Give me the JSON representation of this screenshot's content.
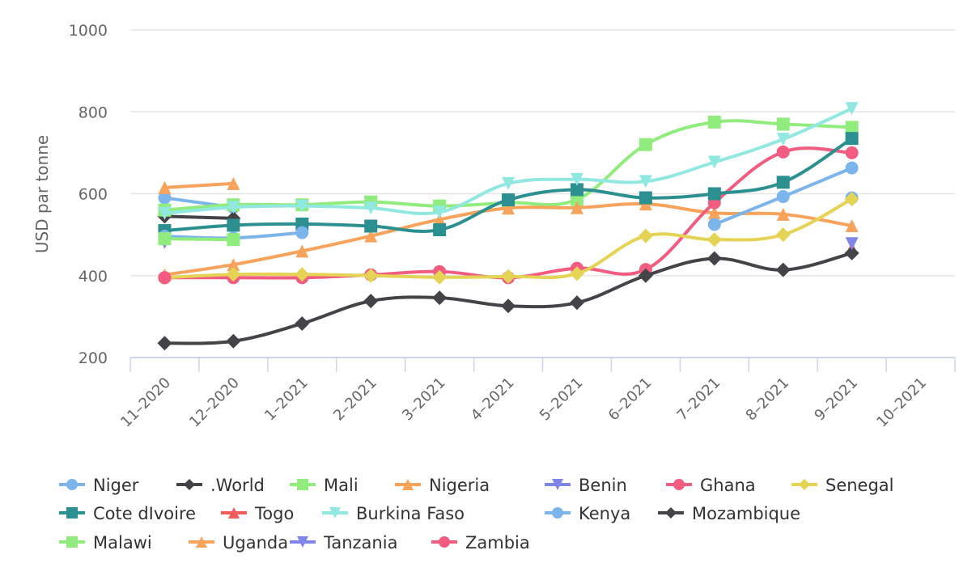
{
  "chart_data": {
    "type": "line",
    "title": "",
    "xlabel": "",
    "ylabel": "USD par tonne",
    "ylim": [
      200,
      1000
    ],
    "yticks": [
      "200",
      "400",
      "600",
      "800",
      "1000"
    ],
    "categories": [
      "11-2020",
      "12-2020",
      "1-2021",
      "2-2021",
      "3-2021",
      "4-2021",
      "5-2021",
      "6-2021",
      "7-2021",
      "8-2021",
      "9-2021",
      "10-2021"
    ],
    "grid": true,
    "legend_position": "bottom",
    "series": [
      {
        "name": "Niger",
        "color": "#7cb5ec",
        "marker": "circle",
        "values": [
          590,
          567,
          null,
          null,
          null,
          null,
          null,
          null,
          null,
          null,
          590,
          null
        ]
      },
      {
        "name": ".World",
        "color": "#434348",
        "marker": "diamond",
        "values": [
          545,
          540,
          null,
          null,
          null,
          null,
          null,
          null,
          null,
          null,
          null,
          null
        ]
      },
      {
        "name": "Mali",
        "color": "#90ed7d",
        "marker": "square",
        "values": [
          560,
          573,
          573,
          580,
          570,
          578,
          586,
          720,
          775,
          770,
          762,
          null
        ]
      },
      {
        "name": "Nigeria",
        "color": "#f7a35c",
        "marker": "triangle",
        "values": [
          402,
          427,
          460,
          497,
          537,
          565,
          566,
          575,
          553,
          550,
          522,
          null
        ]
      },
      {
        "name": "Benin",
        "color": "#8085e9",
        "marker": "triangle-down",
        "values": [
          481,
          null,
          null,
          null,
          null,
          null,
          null,
          null,
          null,
          null,
          null,
          null
        ]
      },
      {
        "name": "Ghana",
        "color": "#f15c80",
        "marker": "circle",
        "values": [
          395,
          395,
          395,
          402,
          410,
          395,
          418,
          415,
          578,
          702,
          700,
          null
        ]
      },
      {
        "name": "Senegal",
        "color": "#e4d354",
        "marker": "diamond",
        "values": [
          395,
          403,
          403,
          400,
          396,
          398,
          405,
          497,
          488,
          500,
          587,
          null
        ]
      },
      {
        "name": "Cote dIvoire",
        "color": "#2b908f",
        "marker": "square",
        "values": [
          510,
          523,
          526,
          521,
          512,
          585,
          610,
          590,
          600,
          628,
          735,
          null
        ]
      },
      {
        "name": "Togo",
        "color": "#f45b5b",
        "marker": "triangle",
        "values": [
          null,
          null,
          null,
          null,
          null,
          null,
          null,
          null,
          null,
          null,
          467,
          null
        ]
      },
      {
        "name": "Burkina Faso",
        "color": "#91e8e1",
        "marker": "triangle-down",
        "values": [
          552,
          567,
          570,
          565,
          555,
          625,
          635,
          630,
          677,
          733,
          808,
          null
        ]
      },
      {
        "name": "Kenya",
        "color": "#7cb5ec",
        "marker": "circle",
        "values": [
          496,
          492,
          505,
          null,
          null,
          null,
          null,
          null,
          525,
          593,
          663,
          null
        ]
      },
      {
        "name": "Mozambique",
        "color": "#434348",
        "marker": "diamond",
        "values": [
          235,
          240,
          283,
          338,
          346,
          326,
          334,
          400,
          442,
          414,
          455,
          null
        ]
      },
      {
        "name": "Malawi",
        "color": "#90ed7d",
        "marker": "square",
        "values": [
          490,
          488,
          null,
          null,
          null,
          null,
          null,
          null,
          null,
          null,
          null,
          null
        ]
      },
      {
        "name": "Uganda",
        "color": "#f7a35c",
        "marker": "triangle",
        "values": [
          615,
          625,
          null,
          null,
          null,
          null,
          null,
          null,
          null,
          null,
          null,
          null
        ]
      },
      {
        "name": "Tanzania",
        "color": "#8085e9",
        "marker": "triangle-down",
        "values": [
          null,
          null,
          null,
          null,
          null,
          null,
          null,
          null,
          null,
          null,
          478,
          null
        ]
      },
      {
        "name": "Zambia",
        "color": "#f15c80",
        "marker": "circle",
        "values": [
          395,
          null,
          null,
          null,
          null,
          null,
          null,
          null,
          null,
          null,
          null,
          null
        ]
      }
    ]
  }
}
